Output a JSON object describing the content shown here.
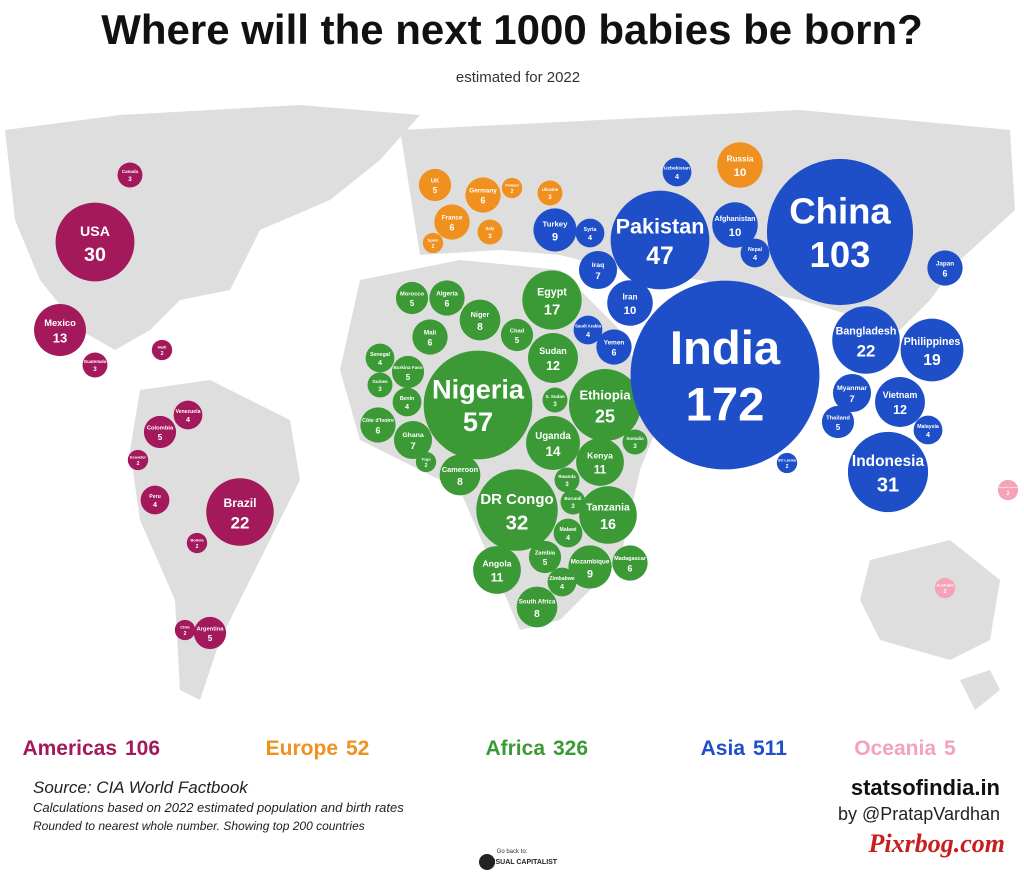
{
  "header": {
    "title": "Where will the next 1000 babies be born?",
    "subtitle": "estimated for 2022"
  },
  "regions": [
    {
      "name": "Americas",
      "total": 106,
      "color": "#a3195b",
      "countries": [
        {
          "name": "USA",
          "value": 30
        },
        {
          "name": "Mexico",
          "value": 13
        },
        {
          "name": "Brazil",
          "value": 22
        },
        {
          "name": "Colombia",
          "value": 5
        },
        {
          "name": "Venezuela",
          "value": 4
        },
        {
          "name": "Peru",
          "value": 4
        },
        {
          "name": "Canada",
          "value": 3
        },
        {
          "name": "Haiti",
          "value": 2
        },
        {
          "name": "Guatemala",
          "value": 3
        },
        {
          "name": "Ecuador",
          "value": 2
        },
        {
          "name": "Bolivia",
          "value": 2
        },
        {
          "name": "Argentina",
          "value": 5
        },
        {
          "name": "Chile",
          "value": 2
        }
      ]
    },
    {
      "name": "Europe",
      "total": 52,
      "color": "#f0901e",
      "countries": [
        {
          "name": "UK",
          "value": 5
        },
        {
          "name": "Germany",
          "value": 6
        },
        {
          "name": "France",
          "value": 6
        },
        {
          "name": "Italy",
          "value": 3
        },
        {
          "name": "Spain",
          "value": 2
        },
        {
          "name": "Poland",
          "value": 2
        },
        {
          "name": "Ukraine",
          "value": 3
        },
        {
          "name": "Russia",
          "value": 10
        }
      ]
    },
    {
      "name": "Africa",
      "total": 326,
      "color": "#3b9a35",
      "countries": [
        {
          "name": "Nigeria",
          "value": 57
        },
        {
          "name": "Ethiopia",
          "value": 25
        },
        {
          "name": "DR Congo",
          "value": 32
        },
        {
          "name": "Egypt",
          "value": 17
        },
        {
          "name": "Sudan",
          "value": 12
        },
        {
          "name": "Uganda",
          "value": 14
        },
        {
          "name": "Kenya",
          "value": 11
        },
        {
          "name": "Tanzania",
          "value": 16
        },
        {
          "name": "Angola",
          "value": 11
        },
        {
          "name": "Niger",
          "value": 8
        },
        {
          "name": "Mali",
          "value": 6
        },
        {
          "name": "Algeria",
          "value": 6
        },
        {
          "name": "Morocco",
          "value": 5
        },
        {
          "name": "Chad",
          "value": 5
        },
        {
          "name": "Ghana",
          "value": 7
        },
        {
          "name": "Benin",
          "value": 4
        },
        {
          "name": "Cameroon",
          "value": 8
        },
        {
          "name": "South Africa",
          "value": 8
        },
        {
          "name": "Mozambique",
          "value": 9
        },
        {
          "name": "Zambia",
          "value": 5
        },
        {
          "name": "Malawi",
          "value": 4
        },
        {
          "name": "Madagascar",
          "value": 6
        },
        {
          "name": "Senegal",
          "value": 4
        },
        {
          "name": "Guinea",
          "value": 3
        },
        {
          "name": "Côte d'Ivoire",
          "value": 6
        },
        {
          "name": "Burkina Faso",
          "value": 5
        },
        {
          "name": "Somalia",
          "value": 3
        },
        {
          "name": "Burundi",
          "value": 3
        },
        {
          "name": "Rwanda",
          "value": 3
        },
        {
          "name": "Zimbabwe",
          "value": 4
        },
        {
          "name": "S. Sudan",
          "value": 3
        },
        {
          "name": "Togo",
          "value": 2
        }
      ]
    },
    {
      "name": "Asia",
      "total": 511,
      "color": "#1f4fc8",
      "countries": [
        {
          "name": "India",
          "value": 172
        },
        {
          "name": "China",
          "value": 103
        },
        {
          "name": "Pakistan",
          "value": 47
        },
        {
          "name": "Indonesia",
          "value": 31
        },
        {
          "name": "Philippines",
          "value": 19
        },
        {
          "name": "Bangladesh",
          "value": 22
        },
        {
          "name": "Vietnam",
          "value": 12
        },
        {
          "name": "Iran",
          "value": 10
        },
        {
          "name": "Afghanistan",
          "value": 10
        },
        {
          "name": "Iraq",
          "value": 7
        },
        {
          "name": "Turkey",
          "value": 9
        },
        {
          "name": "Myanmar",
          "value": 7
        },
        {
          "name": "Japan",
          "value": 6
        },
        {
          "name": "Yemen",
          "value": 6
        },
        {
          "name": "Thailand",
          "value": 5
        },
        {
          "name": "Syria",
          "value": 4
        },
        {
          "name": "Nepal",
          "value": 4
        },
        {
          "name": "Uzbekistan",
          "value": 4
        },
        {
          "name": "Saudi Arabia",
          "value": 4
        },
        {
          "name": "Malaysia",
          "value": 4
        },
        {
          "name": "Sri Lanka",
          "value": 2
        }
      ]
    },
    {
      "name": "Oceania",
      "total": 5,
      "color": "#f4a3b9",
      "countries": [
        {
          "name": "Australia",
          "value": 2
        },
        {
          "name": "Papua New Guinea",
          "value": 2
        }
      ]
    }
  ],
  "footer": {
    "source": "Source: CIA World Factbook",
    "note1": "Calculations based on 2022 estimated population and birth rates",
    "note2": "Rounded to nearest whole number. Showing top 200 countries",
    "site": "statsofindia.in",
    "author": "by @PratapVardhan",
    "watermark": "Pixrbog.com",
    "logo_small": "Go back to:",
    "logo_name": "VISUAL CAPITALIST"
  }
}
